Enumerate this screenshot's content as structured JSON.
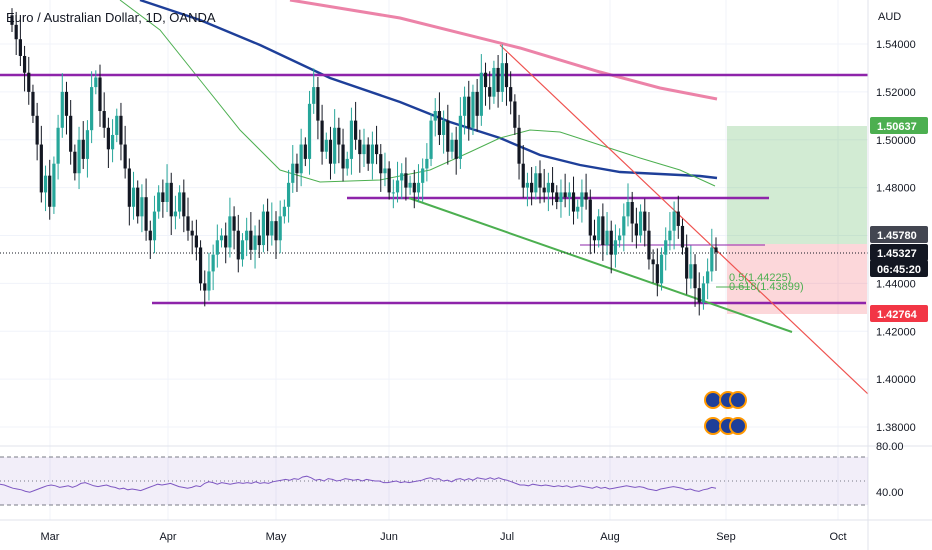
{
  "title": "Euro / Australian Dollar, 1D, OANDA",
  "currency_label": "AUD",
  "colors": {
    "up": "#26a69a",
    "down": "#131722",
    "ma_blue": "#1e3f99",
    "ma_green": "#4caf50",
    "ma_pink": "#ec83a8",
    "purple": "#8e24aa",
    "channel_green": "#4caf50",
    "trend_red": "#ef5350"
  },
  "price_tags": [
    {
      "value": "1.50637",
      "bg": "#4caf50",
      "fg": "#ffffff"
    },
    {
      "value": "1.45780",
      "bg": "#434651",
      "fg": "#ffffff"
    },
    {
      "value": "1.45327",
      "bg": "#131722",
      "fg": "#ffffff"
    },
    {
      "value": "06:45:20",
      "bg": "#131722",
      "fg": "#ffffff"
    },
    {
      "value": "1.42764",
      "bg": "#f23645",
      "fg": "#ffffff"
    }
  ],
  "fib_labels": [
    "0.5(1.44225)",
    "0.618(1.43899)"
  ],
  "rsi_axis_labels": [
    "80.00",
    "40.00"
  ],
  "chart_data": {
    "type": "candlestick",
    "x_ticks": [
      "Mar",
      "Apr",
      "May",
      "Jun",
      "Jul",
      "Aug",
      "Sep",
      "Oct"
    ],
    "y_ticks": [
      "1.54000",
      "1.52000",
      "1.50000",
      "1.48000",
      "1.46000",
      "1.44000",
      "1.42000",
      "1.40000",
      "1.38000"
    ],
    "ylim": [
      1.372,
      1.552
    ],
    "close_series": [
      1.548,
      1.542,
      1.535,
      1.528,
      1.52,
      1.51,
      1.498,
      1.478,
      1.485,
      1.472,
      1.49,
      1.505,
      1.52,
      1.51,
      1.495,
      1.486,
      1.5,
      1.492,
      1.504,
      1.522,
      1.526,
      1.512,
      1.505,
      1.496,
      1.502,
      1.51,
      1.498,
      1.488,
      1.472,
      1.48,
      1.468,
      1.476,
      1.462,
      1.458,
      1.47,
      1.478,
      1.474,
      1.482,
      1.468,
      1.47,
      1.478,
      1.468,
      1.462,
      1.46,
      1.455,
      1.44,
      1.437,
      1.445,
      1.452,
      1.458,
      1.46,
      1.455,
      1.468,
      1.462,
      1.45,
      1.458,
      1.462,
      1.454,
      1.46,
      1.456,
      1.47,
      1.46,
      1.466,
      1.458,
      1.468,
      1.472,
      1.482,
      1.49,
      1.486,
      1.498,
      1.492,
      1.515,
      1.522,
      1.508,
      1.495,
      1.5,
      1.49,
      1.505,
      1.498,
      1.488,
      1.492,
      1.508,
      1.5,
      1.494,
      1.498,
      1.49,
      1.498,
      1.494,
      1.486,
      1.488,
      1.478,
      1.478,
      1.483,
      1.486,
      1.48,
      1.482,
      1.478,
      1.482,
      1.488,
      1.492,
      1.508,
      1.512,
      1.502,
      1.508,
      1.495,
      1.5,
      1.492,
      1.51,
      1.518,
      1.505,
      1.52,
      1.51,
      1.528,
      1.522,
      1.518,
      1.53,
      1.52,
      1.532,
      1.522,
      1.516,
      1.505,
      1.49,
      1.48,
      1.482,
      1.478,
      1.486,
      1.48,
      1.478,
      1.482,
      1.478,
      1.474,
      1.478,
      1.476,
      1.478,
      1.47,
      1.472,
      1.478,
      1.475,
      1.46,
      1.458,
      1.468,
      1.456,
      1.462,
      1.452,
      1.458,
      1.46,
      1.468,
      1.474,
      1.465,
      1.46,
      1.47,
      1.462,
      1.45,
      1.448,
      1.44,
      1.452,
      1.458,
      1.462,
      1.47,
      1.464,
      1.455,
      1.442,
      1.448,
      1.438,
      1.432,
      1.44,
      1.445,
      1.455,
      1.453
    ]
  },
  "rsi": {
    "series": [
      46,
      45,
      43,
      41,
      40,
      39,
      37,
      36,
      38,
      40,
      42,
      44,
      45,
      44,
      42,
      43,
      44,
      42,
      44,
      47,
      48,
      46,
      44,
      43,
      44,
      45,
      43,
      42,
      40,
      41,
      39,
      40,
      39,
      38,
      40,
      42,
      44,
      46,
      45,
      46,
      47,
      45,
      43,
      42,
      41,
      42,
      44,
      43,
      47,
      49,
      48,
      46,
      48,
      47,
      46,
      47,
      48,
      47,
      48,
      47,
      49,
      47,
      48,
      47,
      49,
      50,
      51,
      52,
      51,
      53,
      52,
      55,
      56,
      54,
      51,
      52,
      50,
      53,
      52,
      50,
      51,
      53,
      52,
      51,
      52,
      50,
      52,
      51,
      50,
      50,
      48,
      48,
      49,
      50,
      48,
      49,
      48,
      49,
      50,
      51,
      53,
      54,
      52,
      53,
      50,
      51,
      49,
      52,
      53,
      51,
      53,
      51,
      54,
      53,
      52,
      54,
      52,
      54,
      52,
      51,
      49,
      47,
      45,
      45,
      44,
      46,
      45,
      44,
      45,
      44,
      43,
      44,
      43,
      44,
      42,
      43,
      44,
      43,
      42,
      41,
      43,
      41,
      42,
      40,
      41,
      42,
      43,
      44,
      43,
      42,
      43,
      42,
      40,
      39,
      38,
      40,
      41,
      42,
      43,
      42,
      41,
      39,
      40,
      38,
      37,
      39,
      40,
      42,
      41
    ]
  }
}
